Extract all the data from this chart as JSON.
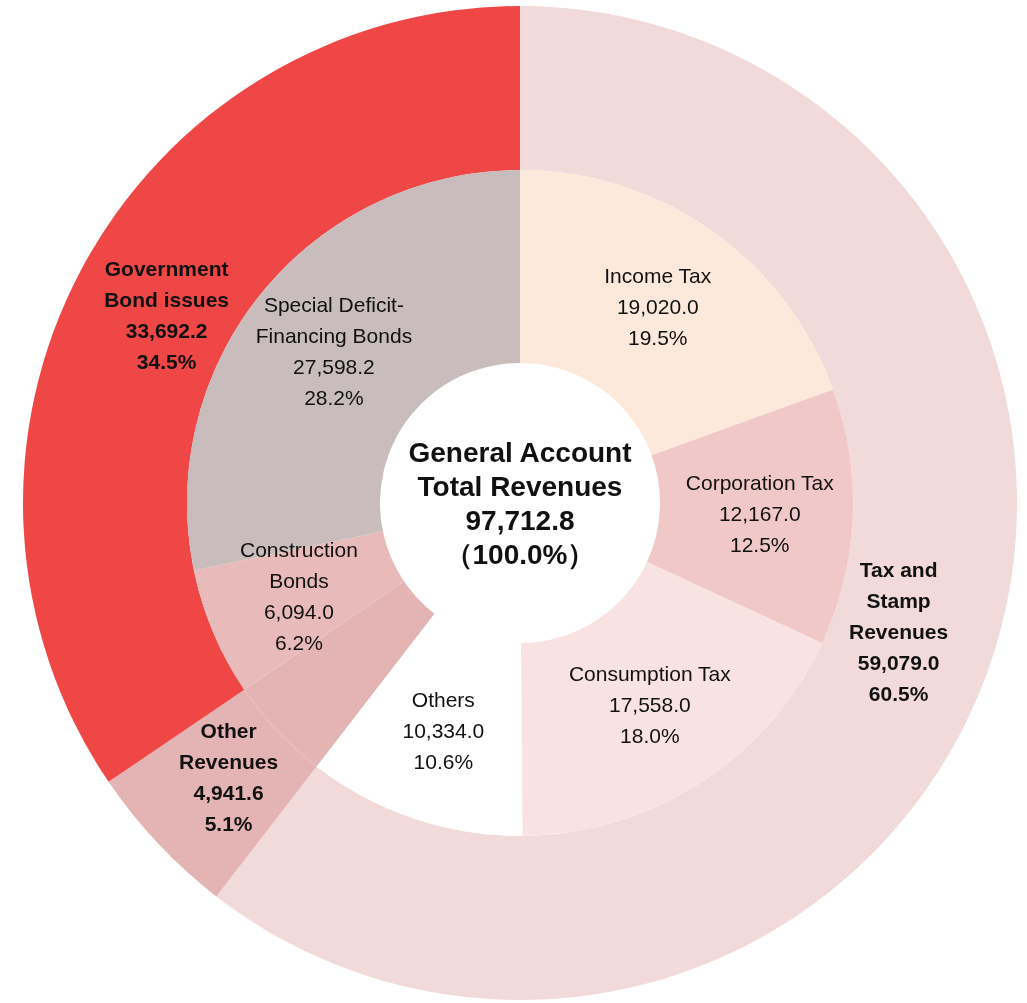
{
  "chart_data": [
    {
      "type": "donut",
      "categories": [
        "Tax and Stamp Revenues",
        "Other Revenues",
        "Government Bond issues"
      ],
      "values": [
        59079.0,
        4941.6,
        33692.2
      ],
      "value_labels": [
        "59,079.0\n60.5%",
        "4,941.6\n5.1%",
        "33,692.2\n34.5%"
      ],
      "colors": [
        "#f2dada",
        "#e4b4b4",
        "#ef4646"
      ]
    },
    {
      "type": "donut",
      "title": "General Account Total Revenues",
      "annotations": [
        "97,712.8",
        "（100.0%）"
      ],
      "categories": [
        "Income Tax",
        "Corporation Tax",
        "Consumption Tax",
        "Others",
        null,
        "Construction Bonds",
        "Special Deficit-Financing Bonds"
      ],
      "values": [
        19020.0,
        12167.0,
        17558.0,
        10334.0,
        4941.6,
        6094.0,
        27598.2
      ],
      "value_labels": [
        "19,020.0\n19.5%",
        "12,167.0\n12.5%",
        "17,558.0\n18.0%",
        "10,334.0\n10.6%",
        null,
        "6,094.0\n6.2%",
        "27,598.2\n28.2%"
      ],
      "colors": [
        "#fde9dc",
        "#f0c8c8",
        "#f8e2e2",
        "#ffffff",
        "#e4b4b4",
        "#e8baba",
        "#c9bcbc"
      ]
    }
  ]
}
